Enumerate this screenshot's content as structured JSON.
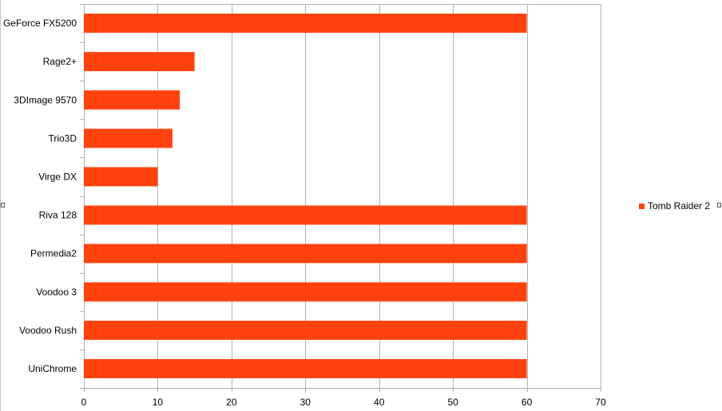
{
  "chart_data": {
    "type": "bar",
    "orientation": "horizontal",
    "categories": [
      "GeForce FX5200",
      "Rage2+",
      "3DImage 9570",
      "Trio3D",
      "Virge DX",
      "Riva 128",
      "Permedia2",
      "Voodoo 3",
      "Voodoo Rush",
      "UniChrome"
    ],
    "series": [
      {
        "name": "Tomb Raider 2",
        "color": "#ff420e",
        "values": [
          60,
          15,
          13,
          12,
          10,
          60,
          60,
          60,
          60,
          60
        ]
      }
    ],
    "xlim": [
      0,
      70
    ],
    "xticks": [
      "0",
      "10",
      "20",
      "30",
      "40",
      "50",
      "60",
      "70"
    ],
    "grid": "vertical",
    "legend_position": "right",
    "title": "",
    "xlabel": "",
    "ylabel": ""
  }
}
